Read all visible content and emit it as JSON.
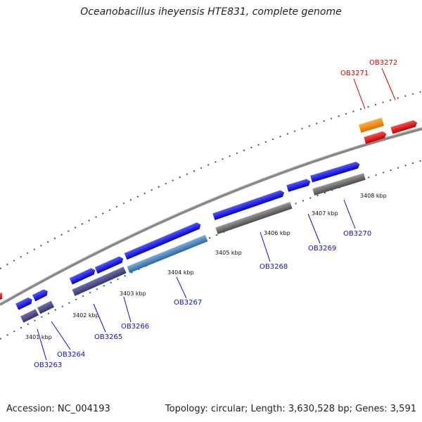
{
  "title": "Oceanobacillus iheyensis HTE831, complete genome",
  "footer": {
    "accession": "Accession: NC_004193",
    "summary": "Topology: circular; Length: 3,630,528 bp; Genes: 3,591"
  },
  "colors": {
    "forward_gene": "#1010e0",
    "reverse_gene": "#4a4a8c",
    "highlight_gene": "#3a78b8",
    "pseudo_gene": "#ff8c00",
    "red_gene": "#e80000",
    "gray_gene": "#666666",
    "backbone": "#888888",
    "tick": "#1a7a1a",
    "label_blue": "#1010c0",
    "label_red": "#d00000"
  },
  "kbp_labels": [
    "3401 kbp",
    "3402 kbp",
    "3403 kbp",
    "3404 kbp",
    "3405 kbp",
    "3406 kbp",
    "3407 kbp",
    "3408 kbp"
  ],
  "gene_labels": [
    {
      "text": "OB3263",
      "color": "blue"
    },
    {
      "text": "OB3264",
      "color": "blue"
    },
    {
      "text": "OB3265",
      "color": "blue"
    },
    {
      "text": "OB3266",
      "color": "blue"
    },
    {
      "text": "OB3267",
      "color": "blue"
    },
    {
      "text": "OB3268",
      "color": "blue"
    },
    {
      "text": "OB3269",
      "color": "blue"
    },
    {
      "text": "OB3270",
      "color": "blue"
    },
    {
      "text": "OB3271",
      "color": "red"
    },
    {
      "text": "OB3272",
      "color": "red"
    }
  ]
}
